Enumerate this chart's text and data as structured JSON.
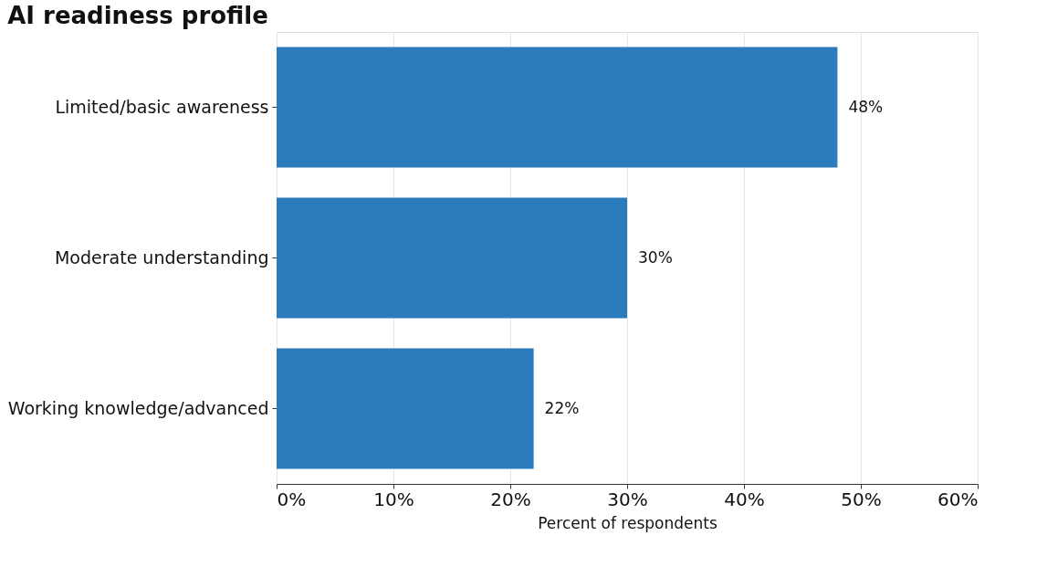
{
  "chart_data": {
    "type": "bar",
    "orientation": "horizontal",
    "title": "AI readiness profile",
    "xlabel": "Percent of respondents",
    "categories": [
      "Limited/basic awareness",
      "Moderate understanding",
      "Working knowledge/advanced"
    ],
    "values": [
      48,
      30,
      22
    ],
    "color": "#2b7bbd",
    "value_labels": [
      "48%",
      "30%",
      "22%"
    ],
    "xlim": [
      0,
      60
    ],
    "xticks": [
      {
        "value": 0,
        "label": "0%"
      },
      {
        "value": 10,
        "label": "10%"
      },
      {
        "value": 20,
        "label": "20%"
      },
      {
        "value": 30,
        "label": "30%"
      },
      {
        "value": 40,
        "label": "40%"
      },
      {
        "value": 50,
        "label": "50%"
      },
      {
        "value": 60,
        "label": "60%"
      }
    ],
    "grid": "x"
  }
}
